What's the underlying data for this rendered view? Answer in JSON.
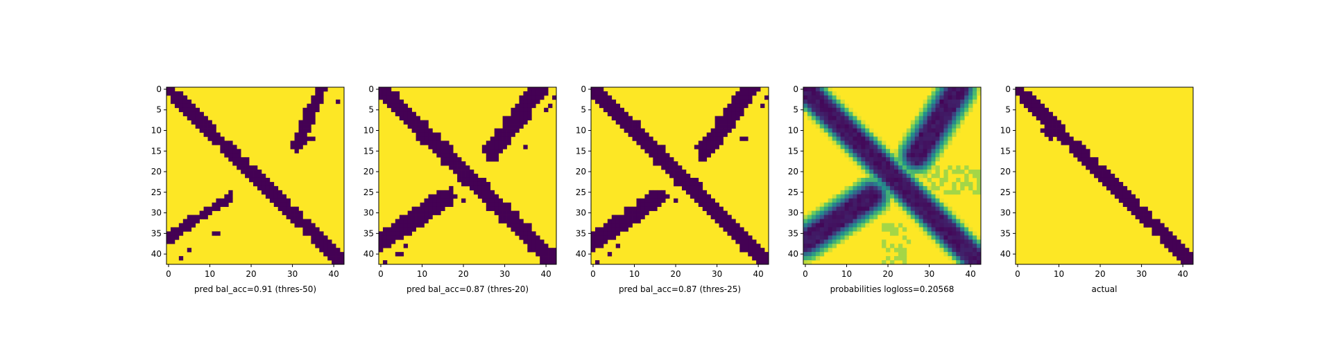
{
  "figure": {
    "panel_count": 5
  },
  "chart_data": [
    {
      "type": "heatmap",
      "title": "",
      "xlabel": "pred bal_acc=0.91 (thres-50)",
      "ylabel": "",
      "grid_size": 43,
      "xlim": [
        0,
        42
      ],
      "ylim": [
        42,
        0
      ],
      "xticks": [
        0,
        10,
        20,
        30,
        40
      ],
      "yticks": [
        0,
        5,
        10,
        15,
        20,
        25,
        30,
        35,
        40
      ],
      "values_kind": "binary",
      "colormap": {
        "low": "#440154",
        "high": "#fde725"
      },
      "structures": {
        "main_diagonal": {
          "from": [
            0,
            0
          ],
          "to": [
            42,
            42
          ],
          "half_width": 1.6
        },
        "anti_diagonal_segments": [
          {
            "from": [
              37,
              0
            ],
            "to": [
              31,
              14
            ],
            "half_width": 1.4
          },
          {
            "from": [
              15,
              26
            ],
            "to": [
              0,
              36
            ],
            "half_width": 1.1
          }
        ],
        "speckles": [
          [
            41,
            3
          ],
          [
            35,
            12
          ],
          [
            34,
            12
          ],
          [
            12,
            35
          ],
          [
            11,
            35
          ],
          [
            3,
            41
          ],
          [
            5,
            39
          ]
        ]
      }
    },
    {
      "type": "heatmap",
      "title": "",
      "xlabel": "pred bal_acc=0.87 (thres-20)",
      "ylabel": "",
      "grid_size": 43,
      "xlim": [
        0,
        42
      ],
      "ylim": [
        42,
        0
      ],
      "xticks": [
        0,
        10,
        20,
        30,
        40
      ],
      "yticks": [
        0,
        5,
        10,
        15,
        20,
        25,
        30,
        35,
        40
      ],
      "values_kind": "binary",
      "colormap": {
        "low": "#440154",
        "high": "#fde725"
      },
      "structures": {
        "main_diagonal": {
          "from": [
            0,
            0
          ],
          "to": [
            42,
            42
          ],
          "half_width": 1.9
        },
        "anti_diagonal_segments": [
          {
            "from": [
              38,
              0
            ],
            "to": [
              27,
              15
            ],
            "half_width": 2.2
          },
          {
            "from": [
              16,
              26
            ],
            "to": [
              0,
              37
            ],
            "half_width": 2.2
          }
        ],
        "speckles": [
          [
            42,
            2
          ],
          [
            41,
            4
          ],
          [
            40,
            5
          ],
          [
            35,
            14
          ],
          [
            20,
            27
          ],
          [
            6,
            38
          ],
          [
            5,
            40
          ],
          [
            4,
            40
          ],
          [
            1,
            42
          ]
        ]
      }
    },
    {
      "type": "heatmap",
      "title": "",
      "xlabel": "pred bal_acc=0.87 (thres-25)",
      "ylabel": "",
      "grid_size": 43,
      "xlim": [
        0,
        42
      ],
      "ylim": [
        42,
        0
      ],
      "xticks": [
        0,
        10,
        20,
        30,
        40
      ],
      "yticks": [
        0,
        5,
        10,
        15,
        20,
        25,
        30,
        35,
        40
      ],
      "values_kind": "binary",
      "colormap": {
        "low": "#440154",
        "high": "#fde725"
      },
      "structures": {
        "main_diagonal": {
          "from": [
            0,
            0
          ],
          "to": [
            42,
            42
          ],
          "half_width": 1.8
        },
        "anti_diagonal_segments": [
          {
            "from": [
              38,
              0
            ],
            "to": [
              27,
              15
            ],
            "half_width": 2.0
          },
          {
            "from": [
              16,
              26
            ],
            "to": [
              0,
              37
            ],
            "half_width": 2.0
          }
        ],
        "speckles": [
          [
            42,
            2
          ],
          [
            41,
            4
          ],
          [
            37,
            12
          ],
          [
            36,
            12
          ],
          [
            20,
            27
          ],
          [
            6,
            38
          ],
          [
            4,
            40
          ],
          [
            1,
            42
          ]
        ]
      }
    },
    {
      "type": "heatmap",
      "title": "",
      "xlabel": "probabilities logloss=0.20568",
      "ylabel": "",
      "grid_size": 43,
      "xlim": [
        0,
        42
      ],
      "ylim": [
        42,
        0
      ],
      "xticks": [
        0,
        10,
        20,
        30,
        40
      ],
      "yticks": [
        0,
        5,
        10,
        15,
        20,
        25,
        30,
        35,
        40
      ],
      "values_kind": "probability",
      "colormap": {
        "name": "viridis",
        "vmin": 0,
        "vmax": 1
      },
      "structures": {
        "main_diagonal": {
          "from": [
            0,
            0
          ],
          "to": [
            42,
            42
          ],
          "half_width": 1.8,
          "soft_edge": 2.5
        },
        "anti_diagonal_segments": [
          {
            "from": [
              37,
              0
            ],
            "to": [
              27,
              16
            ],
            "half_width": 1.8,
            "soft_edge": 3.5
          },
          {
            "from": [
              16,
              26
            ],
            "to": [
              0,
              37
            ],
            "half_width": 1.8,
            "soft_edge": 3.5
          }
        ],
        "speckles": []
      }
    },
    {
      "type": "heatmap",
      "title": "",
      "xlabel": "actual",
      "ylabel": "",
      "grid_size": 43,
      "xlim": [
        0,
        42
      ],
      "ylim": [
        42,
        0
      ],
      "xticks": [
        0,
        10,
        20,
        30,
        40
      ],
      "yticks": [
        0,
        5,
        10,
        15,
        20,
        25,
        30,
        35,
        40
      ],
      "values_kind": "binary",
      "colormap": {
        "low": "#440154",
        "high": "#fde725"
      },
      "structures": {
        "main_diagonal": {
          "from": [
            0,
            0
          ],
          "to": [
            42,
            42
          ],
          "half_width": 1.6
        },
        "anti_diagonal_segments": [],
        "blobs": [
          {
            "center": [
              8,
              10
            ],
            "radius": 2.0
          }
        ],
        "speckles": []
      }
    }
  ]
}
